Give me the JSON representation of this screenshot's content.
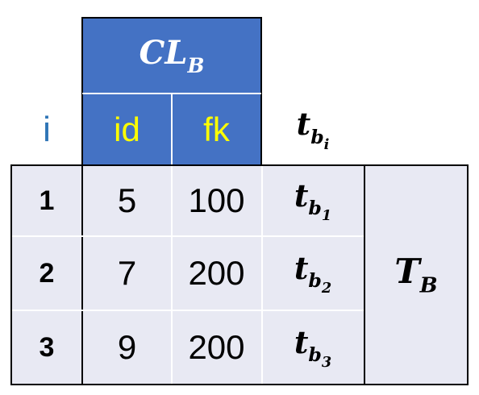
{
  "table": {
    "group_label": {
      "base": "CL",
      "sub": "B"
    },
    "index_header": "i",
    "columns": [
      "id",
      "fk"
    ],
    "tuple_header": {
      "base": "t",
      "sub": "b",
      "subsub": "i"
    },
    "rows": [
      {
        "index": "1",
        "id": "5",
        "fk": "100",
        "tuple": {
          "base": "t",
          "sub": "b",
          "subsub": "1"
        }
      },
      {
        "index": "2",
        "id": "7",
        "fk": "200",
        "tuple": {
          "base": "t",
          "sub": "b",
          "subsub": "2"
        }
      },
      {
        "index": "3",
        "id": "9",
        "fk": "200",
        "tuple": {
          "base": "t",
          "sub": "b",
          "subsub": "3"
        }
      }
    ],
    "table_label": {
      "base": "T",
      "sub": "B"
    }
  },
  "colors": {
    "header_fill": "#4472c4",
    "header_text": "#ffff00",
    "index_header_text": "#2e75b6",
    "cell_fill": "#e8e9f3"
  }
}
